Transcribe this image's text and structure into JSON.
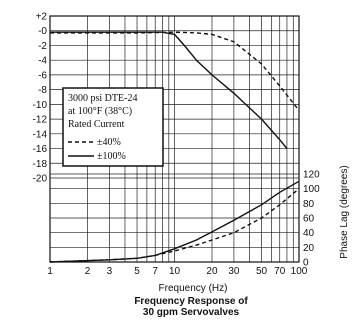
{
  "chart_data": {
    "type": "line",
    "caption": [
      "Frequency Response of",
      "30 gpm Servovalves"
    ],
    "xlabel": "Frequency (Hz)",
    "x_scale": "log",
    "xlim": [
      1,
      100
    ],
    "x_ticks": [
      1,
      2,
      3,
      5,
      7,
      10,
      20,
      30,
      50,
      70,
      100
    ],
    "x_tick_labels": [
      "1",
      "2",
      "3",
      "5",
      "7",
      "10",
      "20",
      "30",
      "50",
      "70",
      "100"
    ],
    "grid": true,
    "amplitude_axis": {
      "side": "left",
      "ylim": [
        -20,
        2
      ],
      "ticks": [
        2,
        0,
        -2,
        -4,
        -6,
        -8,
        -10,
        -12,
        -14,
        -16,
        -18,
        -20
      ],
      "tick_labels": [
        "+2",
        "-0",
        "-2",
        "-4",
        "-6",
        "-8",
        "-10",
        "-12",
        "-14",
        "-16",
        "-18",
        "-20"
      ]
    },
    "phase_axis": {
      "side": "right",
      "label": "Phase Lag (degrees)",
      "ylim": [
        0,
        120
      ],
      "ticks": [
        0,
        20,
        40,
        60,
        80,
        100,
        120
      ],
      "tick_labels": [
        "0",
        "20",
        "40",
        "60",
        "80",
        "100",
        "120"
      ]
    },
    "legend": {
      "position": "left",
      "title_lines": [
        "3000 psi DTE-24",
        "at 100°F (38°C)",
        "Rated Current"
      ],
      "entries": [
        {
          "style": "dashed",
          "label": "±40%"
        },
        {
          "style": "solid",
          "label": "±100%"
        }
      ]
    },
    "series": [
      {
        "name": "±40%",
        "style": "dashed",
        "panel": "amplitude",
        "points": [
          [
            1,
            -0.3
          ],
          [
            5,
            -0.3
          ],
          [
            10,
            -0.2
          ],
          [
            15,
            -0.3
          ],
          [
            20,
            -0.5
          ],
          [
            30,
            -1.5
          ],
          [
            50,
            -4.5
          ],
          [
            70,
            -7.5
          ],
          [
            100,
            -10.8
          ]
        ]
      },
      {
        "name": "±100%",
        "style": "solid",
        "panel": "amplitude",
        "points": [
          [
            1,
            -0.2
          ],
          [
            5,
            -0.2
          ],
          [
            8,
            -0.2
          ],
          [
            10,
            -0.5
          ],
          [
            12,
            -2
          ],
          [
            15,
            -4
          ],
          [
            20,
            -6
          ],
          [
            30,
            -8.5
          ],
          [
            50,
            -12
          ],
          [
            70,
            -14.8
          ],
          [
            80,
            -16
          ]
        ]
      },
      {
        "name": "±40%",
        "style": "dashed",
        "panel": "phase",
        "points": [
          [
            1,
            0
          ],
          [
            3,
            3
          ],
          [
            5,
            5
          ],
          [
            7,
            9
          ],
          [
            10,
            15
          ],
          [
            15,
            23
          ],
          [
            20,
            30
          ],
          [
            30,
            40
          ],
          [
            50,
            60
          ],
          [
            70,
            78
          ],
          [
            100,
            100
          ]
        ]
      },
      {
        "name": "±100%",
        "style": "solid",
        "panel": "phase",
        "points": [
          [
            1,
            0
          ],
          [
            3,
            3
          ],
          [
            5,
            5
          ],
          [
            7,
            9
          ],
          [
            10,
            18
          ],
          [
            15,
            30
          ],
          [
            20,
            41
          ],
          [
            30,
            57
          ],
          [
            50,
            78
          ],
          [
            70,
            95
          ],
          [
            100,
            110
          ]
        ]
      }
    ]
  }
}
